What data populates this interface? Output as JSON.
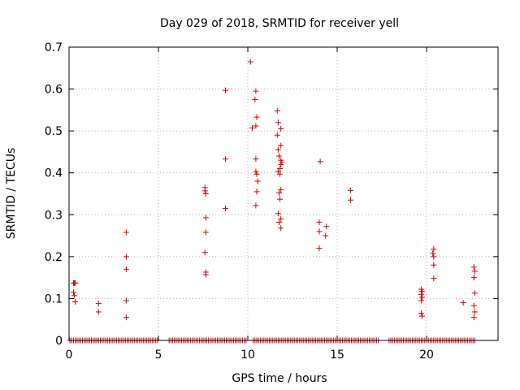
{
  "chart_data": {
    "type": "scatter",
    "title": "Day 029 of 2018, SRMTID for receiver yell",
    "xlabel": "GPS time / hours",
    "ylabel": "SRMTID / TECUs",
    "xlim": [
      0,
      24
    ],
    "ylim": [
      0,
      0.7
    ],
    "xticks": [
      "0",
      "5",
      "10",
      "15",
      "20"
    ],
    "xtick_values": [
      0,
      5,
      10,
      15,
      20
    ],
    "yticks": [
      "0",
      "0.1",
      "0.2",
      "0.3",
      "0.4",
      "0.5",
      "0.6",
      "0.7"
    ],
    "ytick_values": [
      0,
      0.1,
      0.2,
      0.3,
      0.4,
      0.5,
      0.6,
      0.7
    ],
    "grid": true,
    "marker": "plus",
    "color": "#dd0000",
    "zero_runs": [
      [
        0.05,
        5.0
      ],
      [
        5.6,
        9.9
      ],
      [
        10.3,
        17.3
      ],
      [
        17.9,
        22.7
      ]
    ],
    "zero_step": 0.1,
    "points": [
      [
        0.25,
        0.137
      ],
      [
        0.3,
        0.137
      ],
      [
        0.35,
        0.137
      ],
      [
        0.25,
        0.115
      ],
      [
        0.3,
        0.107
      ],
      [
        0.35,
        0.092
      ],
      [
        1.65,
        0.088
      ],
      [
        1.65,
        0.068
      ],
      [
        3.2,
        0.258
      ],
      [
        3.2,
        0.2
      ],
      [
        3.2,
        0.17
      ],
      [
        3.2,
        0.095
      ],
      [
        3.2,
        0.055
      ],
      [
        7.6,
        0.365
      ],
      [
        7.6,
        0.357
      ],
      [
        7.65,
        0.35
      ],
      [
        7.65,
        0.293
      ],
      [
        7.65,
        0.258
      ],
      [
        7.6,
        0.21
      ],
      [
        7.65,
        0.163
      ],
      [
        7.65,
        0.157
      ],
      [
        8.75,
        0.597
      ],
      [
        8.75,
        0.433
      ],
      [
        8.75,
        0.315
      ],
      [
        10.15,
        0.665
      ],
      [
        10.45,
        0.595
      ],
      [
        10.4,
        0.575
      ],
      [
        10.5,
        0.533
      ],
      [
        10.45,
        0.512
      ],
      [
        10.25,
        0.507
      ],
      [
        10.45,
        0.433
      ],
      [
        10.45,
        0.403
      ],
      [
        10.5,
        0.397
      ],
      [
        10.55,
        0.38
      ],
      [
        10.5,
        0.355
      ],
      [
        10.45,
        0.322
      ],
      [
        11.65,
        0.548
      ],
      [
        11.7,
        0.52
      ],
      [
        11.85,
        0.505
      ],
      [
        11.65,
        0.49
      ],
      [
        11.85,
        0.465
      ],
      [
        11.7,
        0.455
      ],
      [
        11.75,
        0.44
      ],
      [
        11.85,
        0.43
      ],
      [
        11.9,
        0.425
      ],
      [
        11.85,
        0.42
      ],
      [
        11.8,
        0.41
      ],
      [
        11.7,
        0.403
      ],
      [
        11.8,
        0.397
      ],
      [
        11.85,
        0.36
      ],
      [
        11.75,
        0.352
      ],
      [
        11.8,
        0.337
      ],
      [
        11.7,
        0.303
      ],
      [
        11.85,
        0.29
      ],
      [
        11.75,
        0.282
      ],
      [
        11.85,
        0.268
      ],
      [
        14.05,
        0.427
      ],
      [
        14.0,
        0.282
      ],
      [
        14.4,
        0.272
      ],
      [
        14.0,
        0.26
      ],
      [
        14.35,
        0.25
      ],
      [
        14.0,
        0.22
      ],
      [
        15.75,
        0.358
      ],
      [
        15.75,
        0.335
      ],
      [
        19.7,
        0.122
      ],
      [
        19.75,
        0.117
      ],
      [
        19.7,
        0.11
      ],
      [
        19.75,
        0.103
      ],
      [
        19.7,
        0.095
      ],
      [
        19.7,
        0.065
      ],
      [
        19.75,
        0.058
      ],
      [
        20.4,
        0.218
      ],
      [
        20.35,
        0.208
      ],
      [
        20.4,
        0.2
      ],
      [
        20.4,
        0.18
      ],
      [
        20.4,
        0.148
      ],
      [
        22.05,
        0.09
      ],
      [
        22.65,
        0.175
      ],
      [
        22.7,
        0.165
      ],
      [
        22.65,
        0.15
      ],
      [
        22.7,
        0.113
      ],
      [
        22.65,
        0.083
      ],
      [
        22.7,
        0.068
      ],
      [
        22.65,
        0.055
      ]
    ]
  }
}
